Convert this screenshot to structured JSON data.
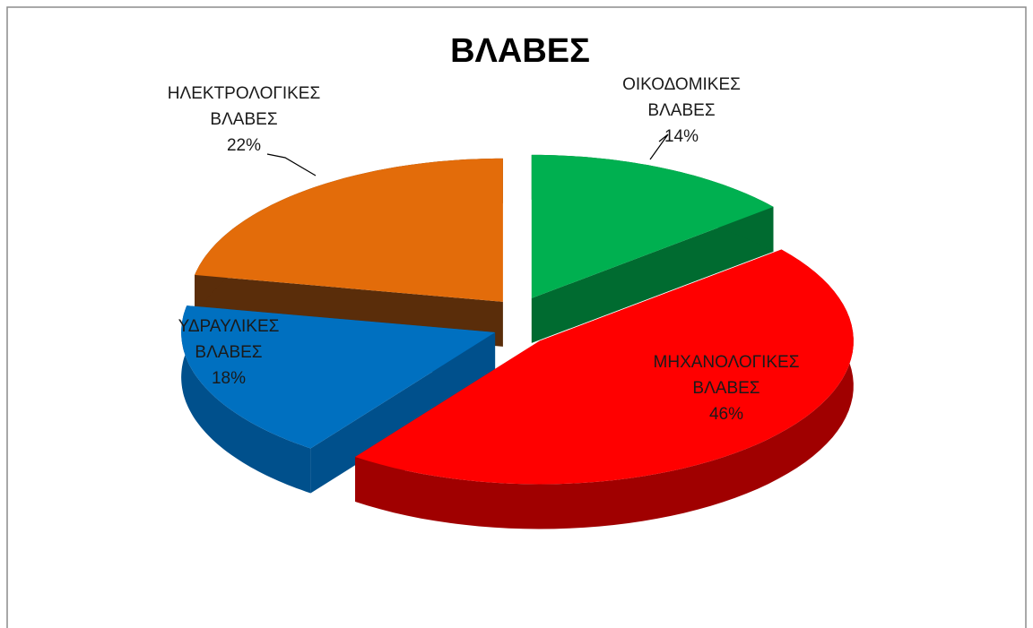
{
  "chart_data": {
    "type": "pie3d",
    "title": "ΒΛΑΒΕΣ",
    "categories": [
      "ΟΙΚΟΔΟΜΙΚΕΣ ΒΛΑΒΕΣ",
      "ΜΗΧΑΝΟΛΟΓΙΚΕΣ ΒΛΑΒΕΣ",
      "ΥΔΡΑΥΛΙΚΕΣ ΒΛΑΒΕΣ",
      "ΗΛΕΚΤΡΟΛΟΓΙΚΕΣ ΒΛΑΒΕΣ"
    ],
    "values": [
      14,
      46,
      18,
      22
    ],
    "value_labels": [
      "14%",
      "46%",
      "18%",
      "22%"
    ],
    "colors": [
      "#00b050",
      "#ff0000",
      "#0070c0",
      "#e36c0a"
    ],
    "side_colors": [
      "#006b30",
      "#a00000",
      "#00508c",
      "#5a2d0a"
    ]
  }
}
